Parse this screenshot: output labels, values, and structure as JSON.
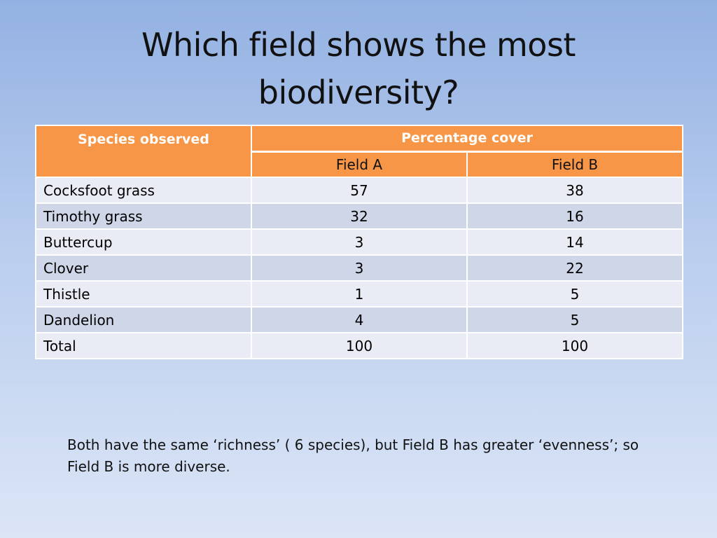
{
  "slide": {
    "title": "Which field shows the most biodiversity?"
  },
  "table": {
    "species_header": "Species observed",
    "group_header": "Percentage cover",
    "field_headers": [
      "Field A",
      "Field B"
    ],
    "rows": [
      {
        "species": "Cocksfoot grass",
        "field_a": "57",
        "field_b": "38"
      },
      {
        "species": "Timothy grass",
        "field_a": "32",
        "field_b": "16"
      },
      {
        "species": "Buttercup",
        "field_a": "3",
        "field_b": "14"
      },
      {
        "species": "Clover",
        "field_a": "3",
        "field_b": "22"
      },
      {
        "species": "Thistle",
        "field_a": "1",
        "field_b": "5"
      },
      {
        "species": "Dandelion",
        "field_a": "4",
        "field_b": "5"
      },
      {
        "species": "Total",
        "field_a": "100",
        "field_b": "100"
      }
    ]
  },
  "note": {
    "text": "Both have the same ‘richness’ ( 6 species), but Field B has greater ‘evenness’; so Field B is more diverse."
  },
  "colors": {
    "header_orange": "#f79646",
    "row_light": "#e9ecf4",
    "row_dark": "#cfd6e8",
    "background_top": "#93b1e2",
    "background_bottom": "#dbe5f6"
  }
}
